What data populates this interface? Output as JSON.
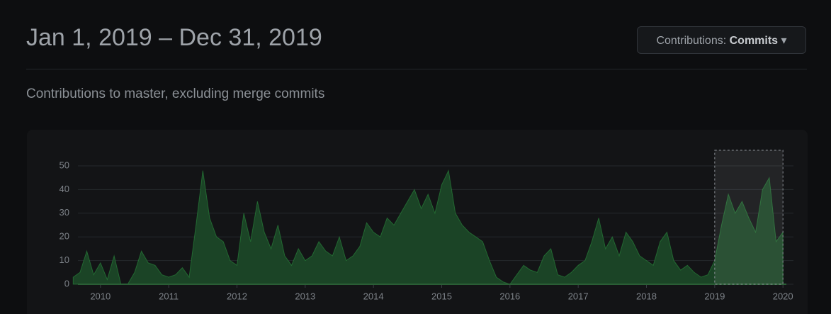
{
  "header": {
    "title": "Jan 1, 2019 – Dec 31, 2019",
    "button_label": "Contributions:",
    "button_value": "Commits"
  },
  "subtitle": "Contributions to master, excluding merge commits",
  "chart_data": {
    "type": "area",
    "x": [
      2009.6,
      2009.7,
      2009.8,
      2009.9,
      2010.0,
      2010.1,
      2010.2,
      2010.3,
      2010.4,
      2010.5,
      2010.6,
      2010.7,
      2010.8,
      2010.9,
      2011.0,
      2011.1,
      2011.2,
      2011.3,
      2011.4,
      2011.5,
      2011.6,
      2011.7,
      2011.8,
      2011.9,
      2012.0,
      2012.1,
      2012.2,
      2012.3,
      2012.4,
      2012.5,
      2012.6,
      2012.7,
      2012.8,
      2012.9,
      2013.0,
      2013.1,
      2013.2,
      2013.3,
      2013.4,
      2013.5,
      2013.6,
      2013.7,
      2013.8,
      2013.9,
      2014.0,
      2014.1,
      2014.2,
      2014.3,
      2014.4,
      2014.5,
      2014.6,
      2014.7,
      2014.8,
      2014.9,
      2015.0,
      2015.1,
      2015.2,
      2015.3,
      2015.4,
      2015.5,
      2015.6,
      2015.7,
      2015.8,
      2015.9,
      2016.0,
      2016.1,
      2016.2,
      2016.3,
      2016.4,
      2016.5,
      2016.6,
      2016.7,
      2016.8,
      2016.9,
      2017.0,
      2017.1,
      2017.2,
      2017.3,
      2017.4,
      2017.5,
      2017.6,
      2017.7,
      2017.8,
      2017.9,
      2018.0,
      2018.1,
      2018.2,
      2018.3,
      2018.4,
      2018.5,
      2018.6,
      2018.7,
      2018.8,
      2018.9,
      2019.0,
      2019.1,
      2019.2,
      2019.3,
      2019.4,
      2019.5,
      2019.6,
      2019.7,
      2019.8,
      2019.9,
      2020.0
    ],
    "values": [
      3,
      5,
      14,
      4,
      9,
      2,
      12,
      0,
      0,
      5,
      14,
      9,
      8,
      4,
      3,
      4,
      7,
      3,
      25,
      48,
      28,
      20,
      18,
      10,
      8,
      30,
      18,
      35,
      22,
      15,
      25,
      12,
      8,
      15,
      10,
      12,
      18,
      14,
      12,
      20,
      10,
      12,
      16,
      26,
      22,
      20,
      28,
      25,
      30,
      35,
      40,
      32,
      38,
      30,
      42,
      48,
      30,
      25,
      22,
      20,
      18,
      10,
      3,
      1,
      0,
      4,
      8,
      6,
      5,
      12,
      15,
      4,
      3,
      5,
      8,
      10,
      18,
      28,
      15,
      20,
      12,
      22,
      18,
      12,
      10,
      8,
      18,
      22,
      10,
      6,
      8,
      5,
      3,
      4,
      10,
      25,
      38,
      30,
      35,
      28,
      22,
      40,
      45,
      18,
      22
    ],
    "color": "#2ea043",
    "xlim": [
      2009.67,
      2020.05
    ],
    "ylim": [
      0,
      50
    ],
    "xticks": [
      2010,
      2011,
      2012,
      2013,
      2014,
      2015,
      2016,
      2017,
      2018,
      2019,
      2020
    ],
    "yticks": [
      0,
      10,
      20,
      30,
      40,
      50
    ],
    "grid": true,
    "selection": [
      2019,
      2020
    ]
  }
}
